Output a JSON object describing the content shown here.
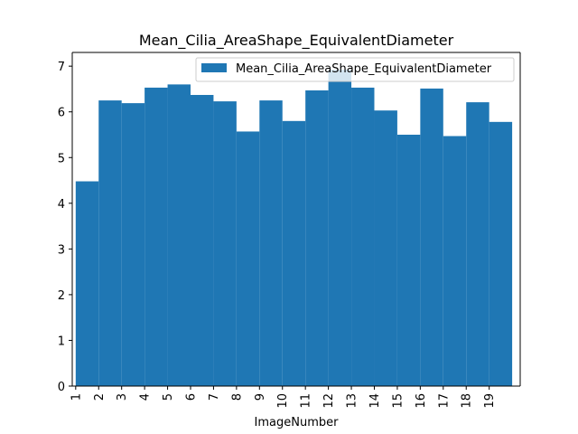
{
  "chart_data": {
    "type": "bar",
    "title": "Mean_Cilia_AreaShape_EquivalentDiameter",
    "xlabel": "ImageNumber",
    "ylabel": "",
    "categories": [
      "1",
      "2",
      "3",
      "4",
      "5",
      "6",
      "7",
      "8",
      "9",
      "10",
      "11",
      "12",
      "13",
      "14",
      "15",
      "16",
      "17",
      "18",
      "19"
    ],
    "x_tick_labels": [
      "1",
      "2",
      "3",
      "4",
      "5",
      "6",
      "7",
      "8",
      "9",
      "10",
      "11",
      "12",
      "13",
      "14",
      "15",
      "16",
      "17",
      "18",
      "19"
    ],
    "y_tick_labels": [
      "0",
      "1",
      "2",
      "3",
      "4",
      "5",
      "6",
      "7"
    ],
    "ylim": [
      0,
      7.3
    ],
    "series": [
      {
        "name": "Mean_Cilia_AreaShape_EquivalentDiameter",
        "color": "#1f77b4",
        "values": [
          4.48,
          6.25,
          6.19,
          6.53,
          6.6,
          6.37,
          6.23,
          5.57,
          6.25,
          5.8,
          6.47,
          6.92,
          6.53,
          6.03,
          5.5,
          6.51,
          5.47,
          6.21,
          5.78
        ]
      }
    ],
    "legend": {
      "position": "top-right",
      "label": "Mean_Cilia_AreaShape_EquivalentDiameter"
    },
    "grid": false
  }
}
